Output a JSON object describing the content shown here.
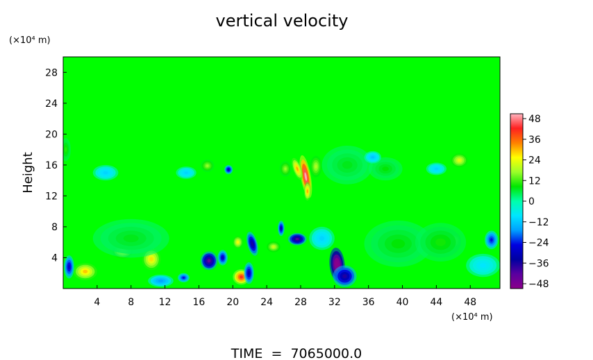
{
  "chart_data": {
    "type": "heatmap",
    "title": "vertical velocity",
    "ylabel": "Height",
    "y_unit": "(×10⁴ m)",
    "x_unit": "(×10⁴ m)",
    "footer": "TIME  =  7065000.0",
    "xlim": [
      0,
      51.5
    ],
    "ylim": [
      0,
      30
    ],
    "x_ticks": [
      4,
      8,
      12,
      16,
      20,
      24,
      28,
      32,
      36,
      40,
      44,
      48
    ],
    "y_ticks": [
      4,
      8,
      12,
      16,
      20,
      24,
      28
    ],
    "colorbar": {
      "range": [
        -48,
        48
      ],
      "ticks": [
        48,
        36,
        24,
        12,
        0,
        -12,
        -24,
        -36,
        -48
      ],
      "colors": [
        "#ffb6c1",
        "#ff2020",
        "#ff8000",
        "#ffff00",
        "#9bff2a",
        "#00e600",
        "#00ffaa",
        "#00e6ff",
        "#00a0ff",
        "#0000e0",
        "#0000a0",
        "#5a00a0",
        "#8b008b"
      ]
    },
    "field_features": [
      {
        "x": 28.6,
        "y": 14.5,
        "rx": 0.6,
        "ry": 2.8,
        "w": 50,
        "rot": 10
      },
      {
        "x": 27.6,
        "y": 15.5,
        "rx": 0.5,
        "ry": 1.5,
        "w": 30,
        "rot": 20
      },
      {
        "x": 28.8,
        "y": 12.6,
        "rx": 0.4,
        "ry": 1.2,
        "w": 30,
        "rot": 0
      },
      {
        "x": 2.6,
        "y": 2.2,
        "rx": 1.4,
        "ry": 1.1,
        "w": 28,
        "rot": 0
      },
      {
        "x": 7.0,
        "y": 4.8,
        "rx": 1.2,
        "ry": 0.9,
        "w": 22,
        "rot": 0
      },
      {
        "x": 10.4,
        "y": 3.8,
        "rx": 1.1,
        "ry": 1.4,
        "w": 26,
        "rot": 0
      },
      {
        "x": 21.0,
        "y": 1.5,
        "rx": 1.0,
        "ry": 1.0,
        "w": 40,
        "rot": 0
      },
      {
        "x": 20.6,
        "y": 6.0,
        "rx": 0.6,
        "ry": 0.8,
        "w": 24,
        "rot": 0
      },
      {
        "x": 24.8,
        "y": 5.4,
        "rx": 0.8,
        "ry": 0.7,
        "w": 20,
        "rot": 0
      },
      {
        "x": 26.2,
        "y": 15.5,
        "rx": 0.7,
        "ry": 1.0,
        "w": 16,
        "rot": 0
      },
      {
        "x": 29.8,
        "y": 15.8,
        "rx": 0.7,
        "ry": 1.4,
        "w": 18,
        "rot": 0
      },
      {
        "x": 17.0,
        "y": 15.9,
        "rx": 0.8,
        "ry": 0.8,
        "w": 16,
        "rot": 0
      },
      {
        "x": 46.7,
        "y": 16.6,
        "rx": 1.0,
        "ry": 0.9,
        "w": 22,
        "rot": 0
      },
      {
        "x": 46.2,
        "y": 6.2,
        "rx": 0.7,
        "ry": 1.0,
        "w": 20,
        "rot": 0
      },
      {
        "x": 39.5,
        "y": 5.8,
        "rx": 4.0,
        "ry": 3.0,
        "w": 8,
        "rot": 0
      },
      {
        "x": 44.5,
        "y": 6.0,
        "rx": 3.0,
        "ry": 2.5,
        "w": 9,
        "rot": 0
      },
      {
        "x": 8.0,
        "y": 6.5,
        "rx": 4.5,
        "ry": 2.5,
        "w": 7,
        "rot": 0
      },
      {
        "x": 33.5,
        "y": 16.0,
        "rx": 3.0,
        "ry": 2.5,
        "w": 7,
        "rot": 0
      },
      {
        "x": 38.0,
        "y": 15.5,
        "rx": 2.0,
        "ry": 1.5,
        "w": 8,
        "rot": 0
      },
      {
        "x": 0.3,
        "y": 18.0,
        "rx": 0.6,
        "ry": 1.5,
        "w": 10,
        "rot": 0
      },
      {
        "x": 32.3,
        "y": 3.1,
        "rx": 0.9,
        "ry": 2.2,
        "w": -60,
        "rot": 5
      },
      {
        "x": 33.2,
        "y": 1.6,
        "rx": 1.4,
        "ry": 1.4,
        "w": -35,
        "rot": 0
      },
      {
        "x": 17.2,
        "y": 3.6,
        "rx": 1.0,
        "ry": 1.2,
        "w": -42,
        "rot": 0
      },
      {
        "x": 22.3,
        "y": 5.8,
        "rx": 0.6,
        "ry": 1.6,
        "w": -34,
        "rot": 15
      },
      {
        "x": 21.9,
        "y": 2.0,
        "rx": 0.6,
        "ry": 1.4,
        "w": -30,
        "rot": 0
      },
      {
        "x": 27.6,
        "y": 6.4,
        "rx": 1.1,
        "ry": 0.8,
        "w": -40,
        "rot": 0
      },
      {
        "x": 25.7,
        "y": 7.8,
        "rx": 0.4,
        "ry": 1.0,
        "w": -30,
        "rot": 0
      },
      {
        "x": 18.8,
        "y": 4.0,
        "rx": 0.6,
        "ry": 1.0,
        "w": -28,
        "rot": 0
      },
      {
        "x": 19.5,
        "y": 15.4,
        "rx": 0.5,
        "ry": 0.6,
        "w": -30,
        "rot": 0
      },
      {
        "x": 0.7,
        "y": 2.8,
        "rx": 0.6,
        "ry": 1.5,
        "w": -28,
        "rot": 0
      },
      {
        "x": 14.2,
        "y": 1.4,
        "rx": 0.7,
        "ry": 0.6,
        "w": -24,
        "rot": 0
      },
      {
        "x": 50.5,
        "y": 6.3,
        "rx": 0.8,
        "ry": 1.2,
        "w": -24,
        "rot": 0
      },
      {
        "x": 11.5,
        "y": 1.0,
        "rx": 1.5,
        "ry": 0.8,
        "w": -16,
        "rot": 0
      },
      {
        "x": 49.5,
        "y": 3.0,
        "rx": 2.0,
        "ry": 1.5,
        "w": -8,
        "rot": 0
      },
      {
        "x": 30.5,
        "y": 6.5,
        "rx": 1.5,
        "ry": 1.5,
        "w": -10,
        "rot": 0
      },
      {
        "x": 5.0,
        "y": 15.0,
        "rx": 1.5,
        "ry": 1.0,
        "w": -10,
        "rot": 0
      },
      {
        "x": 44.0,
        "y": 15.5,
        "rx": 1.2,
        "ry": 0.8,
        "w": -10,
        "rot": 0
      },
      {
        "x": 36.5,
        "y": 17.0,
        "rx": 1.0,
        "ry": 0.8,
        "w": -12,
        "rot": 0
      },
      {
        "x": 14.5,
        "y": 15.0,
        "rx": 1.2,
        "ry": 0.8,
        "w": -10,
        "rot": 0
      }
    ]
  }
}
